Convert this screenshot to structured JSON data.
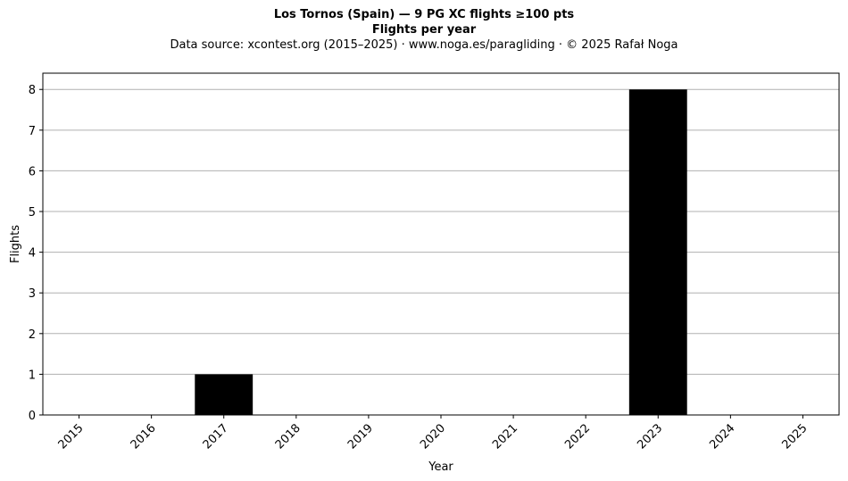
{
  "chart_data": {
    "type": "bar",
    "title": "Los Tornos (Spain)  —  9 PG XC flights ≥100 pts",
    "subtitle": "Flights per year",
    "source": "Data source: xcontest.org (2015–2025)  ·  www.noga.es/paragliding  ·  © 2025 Rafał Noga",
    "xlabel": "Year",
    "ylabel": "Flights",
    "categories": [
      "2015",
      "2016",
      "2017",
      "2018",
      "2019",
      "2020",
      "2021",
      "2022",
      "2023",
      "2024",
      "2025"
    ],
    "values": [
      0,
      0,
      1,
      0,
      0,
      0,
      0,
      0,
      8,
      0,
      0
    ],
    "ylim": [
      0,
      8.4
    ],
    "yticks": [
      0,
      1,
      2,
      3,
      4,
      5,
      6,
      7,
      8
    ],
    "grid": "y",
    "bar_color": "#000000",
    "grid_color": "#b0b0b0"
  }
}
